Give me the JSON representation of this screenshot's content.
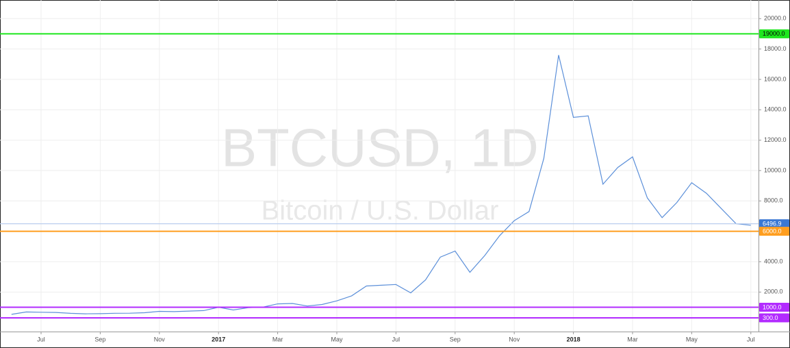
{
  "chart_data": {
    "type": "line",
    "watermark": "BTCUSD, 1D",
    "watermark_subtitle": "Bitcoin / U.S. Dollar",
    "categories": [
      null,
      null,
      "Jul",
      null,
      null,
      null,
      "Sep",
      null,
      null,
      null,
      "Nov",
      null,
      null,
      null,
      "2017",
      null,
      null,
      null,
      "Mar",
      null,
      null,
      null,
      "May",
      null,
      null,
      null,
      "Jul",
      null,
      null,
      null,
      "Sep",
      null,
      null,
      null,
      "Nov",
      null,
      null,
      null,
      "2018",
      null,
      null,
      null,
      "Mar",
      null,
      null,
      null,
      "May",
      null,
      null,
      null,
      "Jul"
    ],
    "series": [
      {
        "color": "#5b8fd9",
        "values": [
          530,
          690,
          670,
          660,
          600,
          570,
          575,
          605,
          610,
          640,
          730,
          710,
          750,
          780,
          1000,
          820,
          970,
          1010,
          1220,
          1250,
          1080,
          1180,
          1420,
          1750,
          2400,
          2450,
          2500,
          1950,
          2800,
          4300,
          4700,
          3300,
          4400,
          5700,
          6700,
          7300,
          10800,
          17600,
          13500,
          13600,
          9100,
          10200,
          10900,
          8200,
          6900,
          7900,
          9200,
          8500,
          7500,
          6500,
          6400
        ]
      }
    ],
    "ylim": [
      -600,
      21000
    ],
    "yticks": [
      {
        "value": 2000,
        "label": "2000.0"
      },
      {
        "value": 4000,
        "label": "4000.0"
      },
      {
        "value": 6000,
        "label": "6000.0"
      },
      {
        "value": 8000,
        "label": "8000.0"
      },
      {
        "value": 10000,
        "label": "10000.0"
      },
      {
        "value": 12000,
        "label": "12000.0"
      },
      {
        "value": 14000,
        "label": "14000.0"
      },
      {
        "value": 16000,
        "label": "16000.0"
      },
      {
        "value": 18000,
        "label": "18000.0"
      },
      {
        "value": 20000,
        "label": "20000.0"
      }
    ],
    "levels": [
      {
        "value": 19000,
        "label": "19000.0",
        "color": "#1ee61e",
        "text_color": "#000000"
      },
      {
        "value": 6496.9,
        "color": "#b9cdee",
        "box_color": "#3a78d4",
        "text_color": "#ffffff"
      },
      {
        "value": 6000,
        "label": "6000.0",
        "color": "#ff9e1f",
        "text_color": "#ffffff"
      },
      {
        "value": 1000,
        "label": "1000.0",
        "color": "#b22bff",
        "text_color": "#ffffff"
      },
      {
        "value": 300,
        "label": "300.0",
        "color": "#b22bff",
        "text_color": "#ffffff"
      }
    ],
    "grid": true
  }
}
